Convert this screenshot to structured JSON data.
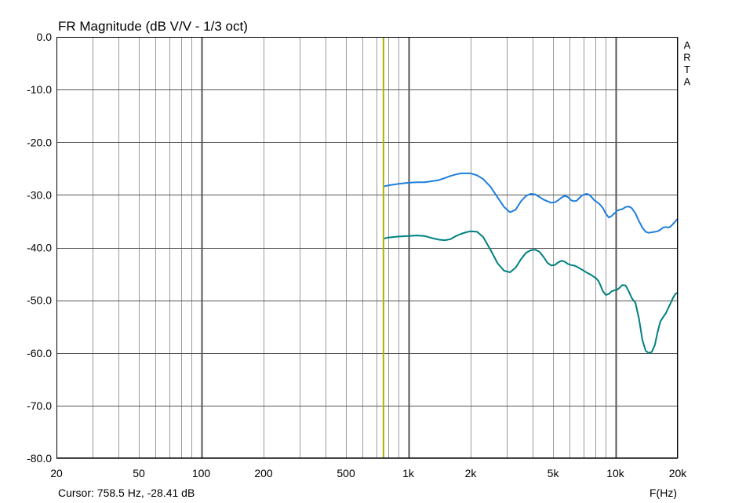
{
  "chart_data": {
    "type": "line",
    "title": "FR Magnitude (dB V/V - 1/3 oct)",
    "xlabel": "F(Hz)",
    "ylabel": "",
    "xscale": "log",
    "xlim": [
      20,
      20000
    ],
    "ylim": [
      -80,
      0
    ],
    "grid": true,
    "x_ticks": [
      {
        "value": 20,
        "label": "20"
      },
      {
        "value": 50,
        "label": "50"
      },
      {
        "value": 100,
        "label": "100"
      },
      {
        "value": 200,
        "label": "200"
      },
      {
        "value": 500,
        "label": "500"
      },
      {
        "value": 1000,
        "label": "1k"
      },
      {
        "value": 2000,
        "label": "2k"
      },
      {
        "value": 5000,
        "label": "5k"
      },
      {
        "value": 10000,
        "label": "10k"
      },
      {
        "value": 20000,
        "label": "20k"
      }
    ],
    "y_ticks": [
      {
        "value": 0,
        "label": "0.0"
      },
      {
        "value": -10,
        "label": "-10.0"
      },
      {
        "value": -20,
        "label": "-20.0"
      },
      {
        "value": -30,
        "label": "-30.0"
      },
      {
        "value": -40,
        "label": "-40.0"
      },
      {
        "value": -50,
        "label": "-50.0"
      },
      {
        "value": -60,
        "label": "-60.0"
      },
      {
        "value": -70,
        "label": "-70.0"
      },
      {
        "value": -80,
        "label": "-80.0"
      }
    ],
    "watermark": "ARTA",
    "cursor": {
      "freq": 758.5,
      "label": "Cursor: 758.5 Hz, -28.41 dB",
      "color": "#b0b000"
    },
    "series": [
      {
        "color": "#1e7fdc",
        "x": [
          758,
          800,
          900,
          1000,
          1100,
          1200,
          1300,
          1400,
          1500,
          1600,
          1700,
          1800,
          1900,
          2000,
          2150,
          2300,
          2500,
          2700,
          2900,
          3100,
          3300,
          3500,
          3700,
          3900,
          4100,
          4300,
          4500,
          4700,
          4900,
          5100,
          5300,
          5500,
          5700,
          5900,
          6100,
          6300,
          6500,
          6700,
          6900,
          7100,
          7300,
          7500,
          7700,
          7900,
          8100,
          8300,
          8500,
          8700,
          9000,
          9300,
          9600,
          9900,
          10200,
          10500,
          10800,
          11200,
          11600,
          12000,
          12500,
          13000,
          13500,
          14000,
          14500,
          15000,
          15500,
          16000,
          16500,
          17000,
          17500,
          18000,
          18500,
          19000,
          19500,
          20000
        ],
        "y": [
          -28.4,
          -28.2,
          -27.9,
          -27.7,
          -27.6,
          -27.6,
          -27.4,
          -27.2,
          -26.8,
          -26.4,
          -26.1,
          -25.9,
          -25.9,
          -25.9,
          -26.3,
          -27.0,
          -28.5,
          -30.5,
          -32.3,
          -33.3,
          -32.8,
          -31.2,
          -30.2,
          -29.8,
          -29.9,
          -30.4,
          -30.9,
          -31.2,
          -31.5,
          -31.4,
          -31.0,
          -30.5,
          -30.2,
          -30.4,
          -31.0,
          -31.2,
          -31.1,
          -30.6,
          -30.1,
          -29.9,
          -29.8,
          -30.0,
          -30.5,
          -31.0,
          -31.3,
          -31.6,
          -32.0,
          -32.5,
          -33.6,
          -34.3,
          -34.0,
          -33.5,
          -33.0,
          -32.8,
          -32.7,
          -32.3,
          -32.2,
          -32.5,
          -33.5,
          -35.0,
          -36.2,
          -37.0,
          -37.2,
          -37.1,
          -37.0,
          -36.9,
          -36.6,
          -36.2,
          -36.1,
          -36.2,
          -36.0,
          -35.5,
          -35.0,
          -34.5
        ]
      },
      {
        "color": "#008080",
        "x": [
          758,
          800,
          900,
          1000,
          1100,
          1200,
          1300,
          1400,
          1500,
          1600,
          1700,
          1800,
          1900,
          2000,
          2150,
          2300,
          2500,
          2700,
          2900,
          3100,
          3300,
          3500,
          3700,
          3900,
          4100,
          4300,
          4500,
          4700,
          4900,
          5100,
          5300,
          5500,
          5700,
          5900,
          6100,
          6300,
          6500,
          6700,
          6900,
          7100,
          7300,
          7500,
          7700,
          7900,
          8100,
          8300,
          8500,
          8700,
          9000,
          9300,
          9600,
          9900,
          10200,
          10500,
          10800,
          11200,
          11600,
          12000,
          12500,
          13000,
          13500,
          14000,
          14500,
          15000,
          15500,
          16000,
          16500,
          17000,
          17500,
          18000,
          18500,
          19000,
          19500,
          20000
        ],
        "y": [
          -38.3,
          -38.1,
          -37.9,
          -37.8,
          -37.7,
          -37.8,
          -38.2,
          -38.5,
          -38.6,
          -38.4,
          -37.8,
          -37.4,
          -37.1,
          -36.9,
          -37.0,
          -38.0,
          -40.5,
          -43.0,
          -44.4,
          -44.7,
          -43.8,
          -42.2,
          -41.0,
          -40.5,
          -40.4,
          -40.8,
          -41.8,
          -42.9,
          -43.4,
          -43.3,
          -42.8,
          -42.5,
          -42.7,
          -43.1,
          -43.3,
          -43.4,
          -43.6,
          -43.9,
          -44.2,
          -44.5,
          -44.8,
          -45.0,
          -45.3,
          -45.6,
          -45.9,
          -46.4,
          -47.3,
          -48.3,
          -49.0,
          -48.8,
          -48.3,
          -48.1,
          -48.0,
          -47.6,
          -47.1,
          -47.2,
          -48.3,
          -49.6,
          -50.5,
          -53.5,
          -57.5,
          -59.6,
          -60.0,
          -59.8,
          -58.5,
          -56.0,
          -54.0,
          -53.2,
          -52.5,
          -51.5,
          -50.5,
          -49.5,
          -48.8,
          -48.5
        ]
      }
    ]
  }
}
